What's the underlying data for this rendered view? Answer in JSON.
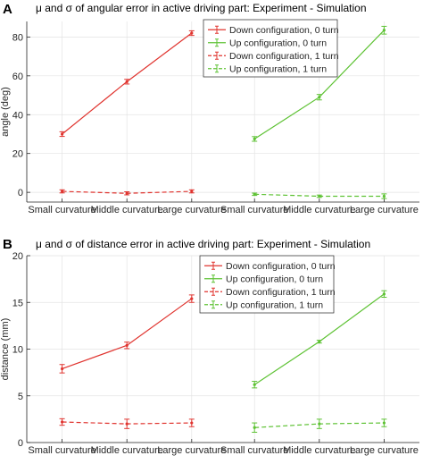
{
  "chart_data": [
    {
      "type": "line",
      "panel_label": "A",
      "title": "μ and σ of angular error in active driving part: Experiment - Simulation",
      "ylabel": "angle (deg)",
      "ylim": [
        -5,
        88
      ],
      "yticks": [
        0,
        20,
        40,
        60,
        80
      ],
      "groups": [
        {
          "categories": [
            "Small curvature",
            "Middle curvature",
            "Large curvature"
          ]
        },
        {
          "categories": [
            "Small curvature",
            "Middle curvature",
            "Large curvature"
          ]
        }
      ],
      "legend": {
        "position": "top-right",
        "entries": [
          "Down configuration, 0 turn",
          "Up configuration, 0 turn",
          "Down configuration, 1 turn",
          "Up configuration, 1 turn"
        ]
      },
      "series": [
        {
          "name": "Down configuration, 0 turn",
          "group": 0,
          "color": "#e0342f",
          "dashed": false,
          "values": [
            30,
            57,
            82
          ],
          "errors": [
            1.2,
            1.2,
            1.2
          ]
        },
        {
          "name": "Up configuration, 0 turn",
          "group": 1,
          "color": "#5ec234",
          "dashed": false,
          "values": [
            27.5,
            49,
            83.5
          ],
          "errors": [
            1.2,
            1.4,
            2
          ]
        },
        {
          "name": "Down configuration, 1 turn",
          "group": 0,
          "color": "#e0342f",
          "dashed": true,
          "values": [
            0.5,
            -0.5,
            0.5
          ],
          "errors": [
            0.8,
            0.8,
            0.8
          ]
        },
        {
          "name": "Up configuration, 1 turn",
          "group": 1,
          "color": "#5ec234",
          "dashed": true,
          "values": [
            -1,
            -2,
            -2
          ],
          "errors": [
            0.6,
            0.6,
            1.2
          ]
        }
      ]
    },
    {
      "type": "line",
      "panel_label": "B",
      "title": "μ and σ of distance error in active driving part: Experiment - Simulation",
      "ylabel": "distance (mm)",
      "ylim": [
        0,
        20
      ],
      "yticks": [
        0,
        5,
        10,
        15,
        20
      ],
      "groups": [
        {
          "categories": [
            "Small curvature",
            "Middle curvature",
            "Large curvature"
          ]
        },
        {
          "categories": [
            "Small curvature",
            "Middle curvature",
            "Large curvature"
          ]
        }
      ],
      "legend": {
        "position": "top-center",
        "entries": [
          "Down configuration, 0 turn",
          "Up configuration, 0 turn",
          "Down configuration, 1 turn",
          "Up configuration, 1 turn"
        ]
      },
      "series": [
        {
          "name": "Down configuration, 0 turn",
          "group": 0,
          "color": "#e0342f",
          "dashed": false,
          "values": [
            7.9,
            10.4,
            15.4
          ],
          "errors": [
            0.45,
            0.35,
            0.4
          ]
        },
        {
          "name": "Up configuration, 0 turn",
          "group": 1,
          "color": "#5ec234",
          "dashed": false,
          "values": [
            6.2,
            10.8,
            15.9
          ],
          "errors": [
            0.35,
            0.15,
            0.35
          ]
        },
        {
          "name": "Down configuration, 1 turn",
          "group": 0,
          "color": "#e0342f",
          "dashed": true,
          "values": [
            2.2,
            2.0,
            2.1
          ],
          "errors": [
            0.35,
            0.5,
            0.4
          ]
        },
        {
          "name": "Up configuration, 1 turn",
          "group": 1,
          "color": "#5ec234",
          "dashed": true,
          "values": [
            1.6,
            2.0,
            2.1
          ],
          "errors": [
            0.5,
            0.5,
            0.4
          ]
        }
      ]
    }
  ]
}
